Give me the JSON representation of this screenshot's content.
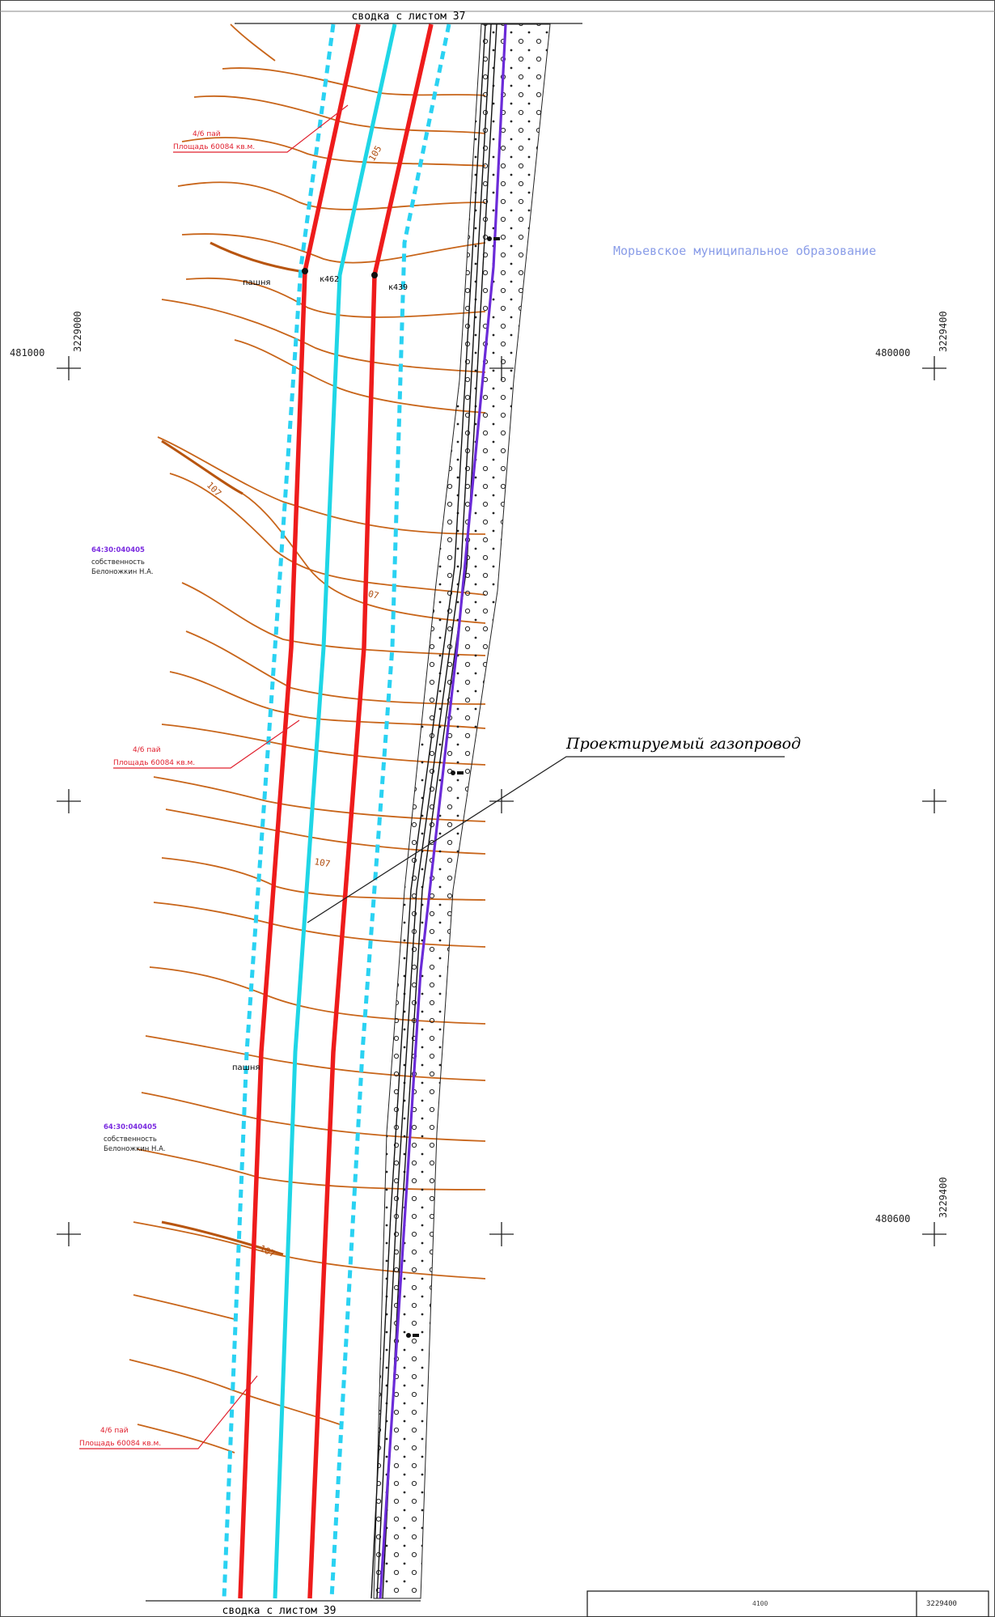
{
  "sheet": {
    "match_top": "сводка с листом 37",
    "match_bottom": "сводка с листом 39"
  },
  "municipality": "Морьевское муниципальное образование",
  "pipeline_label": "Проектируемый газопровод",
  "coords": {
    "left_x_top": "481000",
    "left_y_top": "3229000",
    "right_x_top": "480000",
    "right_y_top": "3229400",
    "right_x_bottom": "480600",
    "right_y_bottom": "3229400"
  },
  "parcels": [
    {
      "line1": "4/6 пай",
      "line2": "Площадь 60084 кв.м."
    },
    {
      "line1": "4/6 пай",
      "line2": "Площадь 60084 кв.м."
    },
    {
      "line1": "4/6 пай",
      "line2": "Площадь 60084 кв.м."
    }
  ],
  "owners": [
    {
      "cadastral": "64:30:040405",
      "line1": "собственность",
      "line2": "Белоножкин Н.А."
    },
    {
      "cadastral": "64:30:040405",
      "line1": "собственность",
      "line2": "Белоножкин Н.А."
    }
  ],
  "land_labels": {
    "field1": "пашня",
    "field2": "пашня"
  },
  "pickets": {
    "p1": "к462",
    "p2": "к439"
  },
  "contours": {
    "c1": "105",
    "c2": "107",
    "c3": "107",
    "c4": "107",
    "c5": "107"
  },
  "title_block": {
    "cell1": "4100",
    "cell2": "3229400"
  },
  "colors": {
    "pipeline": "#ee1c1c",
    "axis": "#1fd6e6",
    "buffer": "#2ad2f2",
    "road": "#6b2bd8",
    "contour": "#c8651a",
    "parcel_label": "#e0202e",
    "owner_code": "#7a2be0",
    "municipality": "#8a9de8"
  }
}
